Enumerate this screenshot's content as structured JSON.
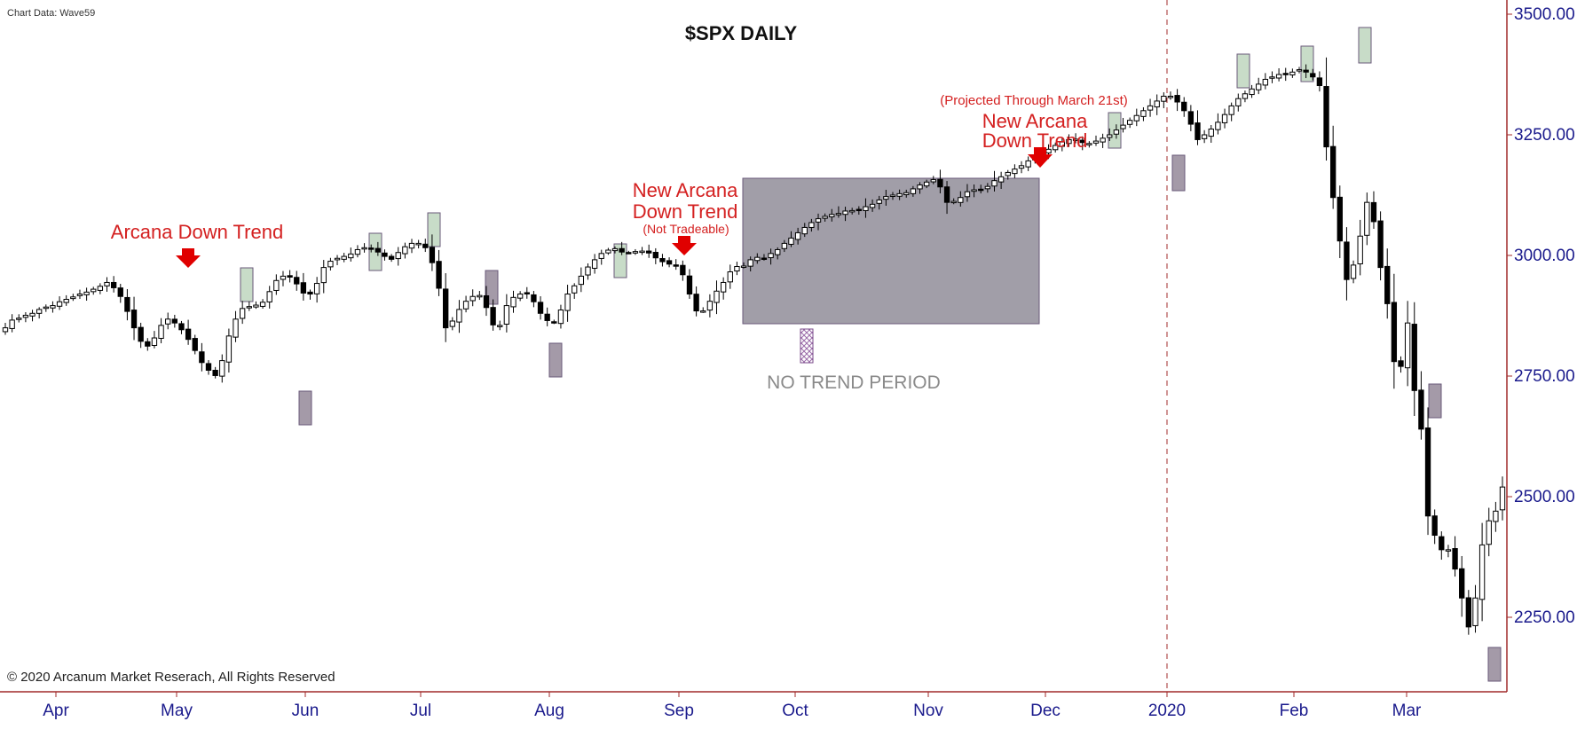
{
  "chart_data": {
    "type": "candlestick",
    "title": "$SPX DAILY",
    "source": "Chart Data: Wave59",
    "copyright": "© 2020 Arcanum Market Reserach, All Rights Reserved",
    "xlabel": "",
    "ylabel": "",
    "ylim": [
      2100,
      3520
    ],
    "y_ticks": [
      "3500.00",
      "3250.00",
      "3000.00",
      "2750.00",
      "2500.00",
      "2250.00"
    ],
    "x_ticks": [
      "Apr",
      "May",
      "Jun",
      "Jul",
      "Aug",
      "Sep",
      "Oct",
      "Nov",
      "Dec",
      "2020",
      "Feb",
      "Mar"
    ],
    "grid": false,
    "series": [
      {
        "type": "candles",
        "values": [
          2850,
          2866,
          2870,
          2876,
          2880,
          2888,
          2893,
          2896,
          2904,
          2909,
          2914,
          2920,
          2924,
          2930,
          2936,
          2944,
          2933,
          2915,
          2884,
          2850,
          2822,
          2812,
          2829,
          2855,
          2868,
          2860,
          2846,
          2826,
          2803,
          2778,
          2762,
          2751,
          2782,
          2833,
          2868,
          2890,
          2894,
          2897,
          2903,
          2925,
          2948,
          2957,
          2955,
          2941,
          2922,
          2920,
          2942,
          2975,
          2988,
          2994,
          2998,
          3003,
          3012,
          3016,
          3015,
          3007,
          2998,
          2992,
          3006,
          3018,
          3025,
          3025,
          3016,
          2985,
          2932,
          2850,
          2864,
          2888,
          2905,
          2915,
          2917,
          2892,
          2856,
          2855,
          2896,
          2913,
          2920,
          2921,
          2904,
          2880,
          2865,
          2862,
          2887,
          2920,
          2937,
          2957,
          2976,
          2991,
          3004,
          3011,
          3014,
          3007,
          3006,
          3008,
          3009,
          3005,
          2995,
          2987,
          2982,
          2978,
          2960,
          2920,
          2885,
          2885,
          2905,
          2926,
          2944,
          2966,
          2977,
          2978,
          2991,
          2996,
          2994,
          3004,
          3012,
          3025,
          3036,
          3047,
          3058,
          3068,
          3076,
          3081,
          3085,
          3087,
          3092,
          3093,
          3094,
          3101,
          3106,
          3115,
          3122,
          3125,
          3128,
          3130,
          3138,
          3146,
          3152,
          3157,
          3142,
          3110,
          3112,
          3120,
          3132,
          3136,
          3137,
          3143,
          3155,
          3163,
          3172,
          3179,
          3186,
          3196,
          3202,
          3210,
          3220,
          3228,
          3235,
          3240,
          3241,
          3234,
          3232,
          3237,
          3243,
          3250,
          3260,
          3270,
          3280,
          3290,
          3300,
          3310,
          3320,
          3330,
          3330,
          3318,
          3300,
          3272,
          3240,
          3250,
          3262,
          3276,
          3292,
          3310,
          3325,
          3335,
          3345,
          3355,
          3365,
          3370,
          3375,
          3375,
          3380,
          3385,
          3380,
          3370,
          3352,
          3225,
          3120,
          3030,
          2950,
          2980,
          3040,
          3110,
          3070,
          2975,
          2900,
          2780,
          2770,
          2860,
          2720,
          2640,
          2460,
          2420,
          2390,
          2390,
          2350,
          2290,
          2230,
          2290,
          2400,
          2450,
          2470,
          2520
        ]
      }
    ]
  },
  "annotations": {
    "arcana_down": "Arcana Down Trend",
    "new_arcana_line1": "New Arcana",
    "new_arcana_line2": "Down Trend",
    "not_tradeable": "(Not Tradeable)",
    "projected": "(Projected Through March 21st)",
    "new_arcana2_line1": "New Arcana",
    "new_arcana2_line2": "Down Trend",
    "no_trend": "NO TREND PERIOD"
  },
  "colors": {
    "axis_text": "#1a1a8c",
    "axis_line": "#a02a2a",
    "annotation_red": "#d42020",
    "no_trend_box": "#a19ea8",
    "upper_box": "#c8dcc8",
    "lower_box": "#a49aa8"
  }
}
